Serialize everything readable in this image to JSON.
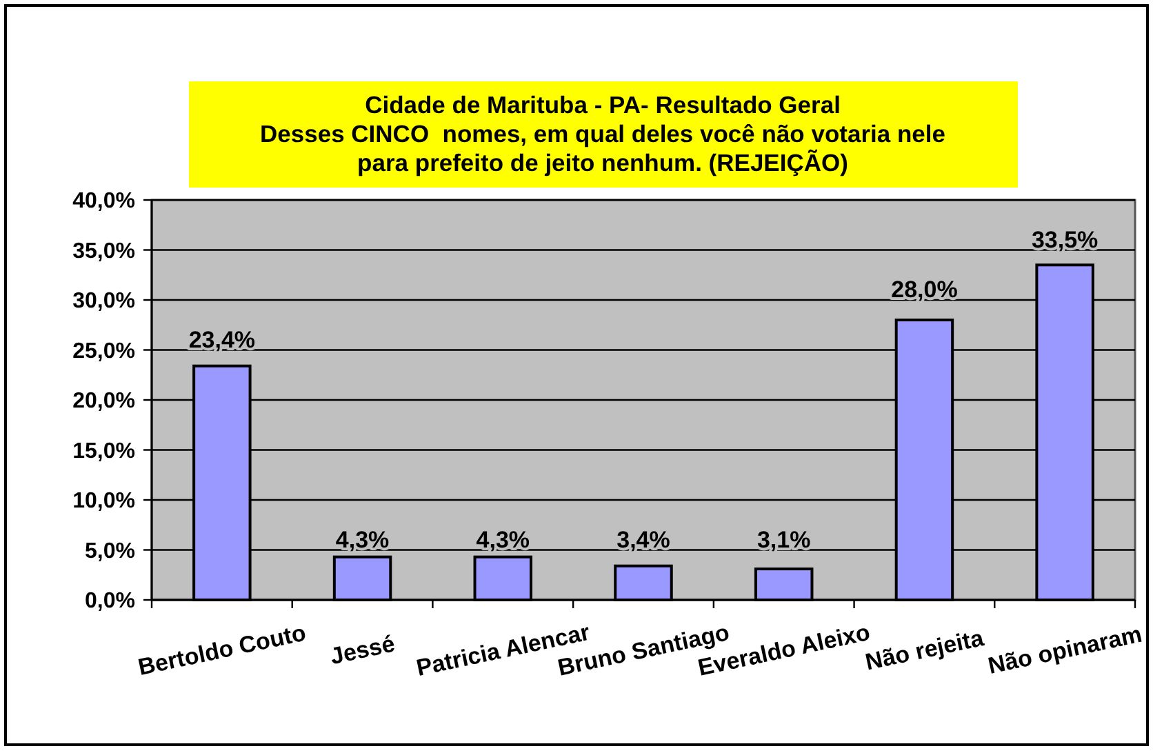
{
  "chart_data": {
    "type": "bar",
    "title": "Cidade de Marituba - PA- Resultado Geral\nDesses CINCO  nomes, em qual deles você não votaria nele\npara prefeito de jeito nenhum. (REJEIÇÃO)",
    "categories": [
      "Bertoldo Couto",
      "Jessé",
      "Patricia Alencar",
      "Bruno Santiago",
      "Everaldo Aleixo",
      "Não rejeita",
      "Não opinaram"
    ],
    "values": [
      23.4,
      4.3,
      4.3,
      3.4,
      3.1,
      28.0,
      33.5
    ],
    "value_labels": [
      "23,4%",
      "4,3%",
      "4,3%",
      "3,4%",
      "3,1%",
      "28,0%",
      "33,5%"
    ],
    "color": "#9999ff",
    "ylim": [
      0,
      40
    ],
    "yticks": [
      {
        "value": 0,
        "label": "0,0%"
      },
      {
        "value": 5,
        "label": "5,0%"
      },
      {
        "value": 10,
        "label": "10,0%"
      },
      {
        "value": 15,
        "label": "15,0%"
      },
      {
        "value": 20,
        "label": "20,0%"
      },
      {
        "value": 25,
        "label": "25,0%"
      },
      {
        "value": 30,
        "label": "30,0%"
      },
      {
        "value": 35,
        "label": "35,0%"
      },
      {
        "value": 40,
        "label": "40,0%"
      }
    ],
    "grid": "y"
  }
}
